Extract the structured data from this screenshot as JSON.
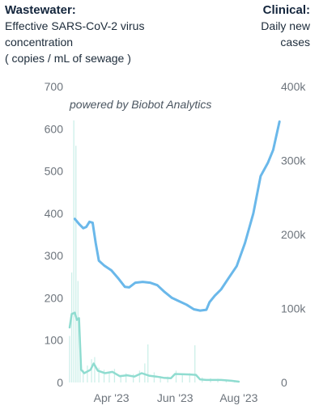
{
  "header": {
    "left_title": "Wastewater:",
    "left_line1": "Effective SARS-CoV-2 virus",
    "left_line2": "concentration",
    "left_line3": "( copies / mL of sewage )",
    "right_title": "Clinical:",
    "right_line1": "Daily new",
    "right_line2": "cases"
  },
  "watermark": "powered by Biobot Analytics",
  "colors": {
    "wastewater_line": "#6ab8ea",
    "cases_line": "#8fdcd0",
    "cases_bars": "#ccefe9",
    "axis_text": "#6d747c"
  },
  "chart_data": {
    "type": "line",
    "left_axis": {
      "ticks": [
        "700",
        "600",
        "500",
        "400",
        "300",
        "200",
        "100",
        "0"
      ],
      "ylim": [
        0,
        700
      ]
    },
    "right_axis": {
      "ticks": [
        "400k",
        "300k",
        "200k",
        "100k",
        "0"
      ],
      "ylim": [
        0,
        400000
      ]
    },
    "x_axis": {
      "ticks": [
        "Apr '23",
        "Jun '23",
        "Aug '23"
      ],
      "tick_dates": [
        "2023-04-01",
        "2023-06-01",
        "2023-08-01"
      ],
      "range": [
        "2023-02-20",
        "2023-09-05"
      ]
    },
    "series": [
      {
        "role": "wastewater",
        "axis": "left",
        "points": [
          [
            "2023-02-25",
            387
          ],
          [
            "2023-03-01",
            375
          ],
          [
            "2023-03-05",
            365
          ],
          [
            "2023-03-08",
            368
          ],
          [
            "2023-03-11",
            380
          ],
          [
            "2023-03-14",
            378
          ],
          [
            "2023-03-17",
            330
          ],
          [
            "2023-03-20",
            288
          ],
          [
            "2023-03-25",
            277
          ],
          [
            "2023-04-01",
            265
          ],
          [
            "2023-04-08",
            245
          ],
          [
            "2023-04-14",
            226
          ],
          [
            "2023-04-18",
            225
          ],
          [
            "2023-04-24",
            236
          ],
          [
            "2023-05-01",
            238
          ],
          [
            "2023-05-08",
            236
          ],
          [
            "2023-05-15",
            230
          ],
          [
            "2023-05-22",
            214
          ],
          [
            "2023-05-29",
            200
          ],
          [
            "2023-06-05",
            192
          ],
          [
            "2023-06-12",
            184
          ],
          [
            "2023-06-19",
            173
          ],
          [
            "2023-06-25",
            170
          ],
          [
            "2023-07-01",
            172
          ],
          [
            "2023-07-04",
            190
          ],
          [
            "2023-07-09",
            205
          ],
          [
            "2023-07-15",
            220
          ],
          [
            "2023-07-22",
            246
          ],
          [
            "2023-07-30",
            275
          ],
          [
            "2023-08-07",
            330
          ],
          [
            "2023-08-15",
            400
          ],
          [
            "2023-08-22",
            488
          ],
          [
            "2023-08-29",
            520
          ],
          [
            "2023-09-03",
            550
          ],
          [
            "2023-09-09",
            617
          ]
        ]
      },
      {
        "role": "clinical_cases_smoothed",
        "axis": "left",
        "points": [
          [
            "2023-02-20",
            130
          ],
          [
            "2023-02-22",
            162
          ],
          [
            "2023-02-25",
            165
          ],
          [
            "2023-02-27",
            148
          ],
          [
            "2023-03-01",
            152
          ],
          [
            "2023-03-03",
            30
          ],
          [
            "2023-03-06",
            22
          ],
          [
            "2023-03-12",
            30
          ],
          [
            "2023-03-15",
            45
          ],
          [
            "2023-03-19",
            28
          ],
          [
            "2023-03-26",
            22
          ],
          [
            "2023-04-02",
            25
          ],
          [
            "2023-04-09",
            15
          ],
          [
            "2023-04-16",
            17
          ],
          [
            "2023-04-23",
            14
          ],
          [
            "2023-04-30",
            22
          ],
          [
            "2023-05-07",
            16
          ],
          [
            "2023-05-14",
            14
          ],
          [
            "2023-05-21",
            11
          ],
          [
            "2023-05-28",
            10
          ],
          [
            "2023-06-01",
            20
          ],
          [
            "2023-06-15",
            19
          ],
          [
            "2023-06-21",
            18
          ],
          [
            "2023-06-25",
            7
          ],
          [
            "2023-07-01",
            6
          ],
          [
            "2023-07-15",
            6
          ],
          [
            "2023-07-25",
            4
          ],
          [
            "2023-08-01",
            2
          ]
        ]
      }
    ],
    "bars": {
      "role": "clinical_cases_daily",
      "axis": "left",
      "points": [
        [
          "2023-02-20",
          110
        ],
        [
          "2023-02-22",
          260
        ],
        [
          "2023-02-24",
          620
        ],
        [
          "2023-02-26",
          560
        ],
        [
          "2023-02-28",
          240
        ],
        [
          "2023-03-02",
          80
        ],
        [
          "2023-03-05",
          30
        ],
        [
          "2023-03-09",
          40
        ],
        [
          "2023-03-13",
          55
        ],
        [
          "2023-03-16",
          60
        ],
        [
          "2023-03-20",
          35
        ],
        [
          "2023-03-25",
          30
        ],
        [
          "2023-03-30",
          25
        ],
        [
          "2023-04-04",
          32
        ],
        [
          "2023-04-10",
          18
        ],
        [
          "2023-04-15",
          22
        ],
        [
          "2023-04-22",
          20
        ],
        [
          "2023-04-28",
          28
        ],
        [
          "2023-05-03",
          45
        ],
        [
          "2023-05-06",
          90
        ],
        [
          "2023-05-12",
          24
        ],
        [
          "2023-05-18",
          15
        ],
        [
          "2023-05-25",
          14
        ],
        [
          "2023-06-02",
          28
        ],
        [
          "2023-06-08",
          20
        ],
        [
          "2023-06-15",
          22
        ],
        [
          "2023-06-20",
          88
        ],
        [
          "2023-06-27",
          12
        ],
        [
          "2023-07-05",
          10
        ],
        [
          "2023-07-12",
          9
        ],
        [
          "2023-07-20",
          7
        ],
        [
          "2023-07-28",
          5
        ]
      ]
    }
  }
}
